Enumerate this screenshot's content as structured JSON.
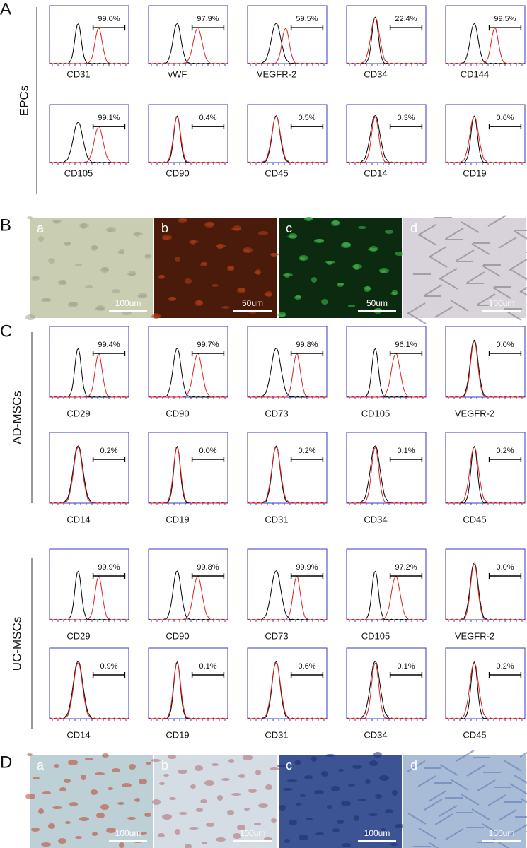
{
  "panels": [
    {
      "label": "A",
      "groups": [
        {
          "name": "EPCs",
          "plots": [
            {
              "marker": "CD31",
              "percent": "99.0%"
            },
            {
              "marker": "vWF",
              "percent": "97.9%"
            },
            {
              "marker": "VEGFR-2",
              "percent": "59.5%"
            },
            {
              "marker": "CD34",
              "percent": "22.4%"
            },
            {
              "marker": "CD144",
              "percent": "99.5%"
            },
            {
              "marker": "CD105",
              "percent": "99.1%"
            },
            {
              "marker": "CD90",
              "percent": "0.4%"
            },
            {
              "marker": "CD45",
              "percent": "0.5%"
            },
            {
              "marker": "CD14",
              "percent": "0.3%"
            },
            {
              "marker": "CD19",
              "percent": "0.6%"
            }
          ]
        }
      ]
    },
    {
      "label": "B",
      "images": [
        {
          "letter": "a",
          "scale": "100um"
        },
        {
          "letter": "b",
          "scale": "50um"
        },
        {
          "letter": "c",
          "scale": "50um"
        },
        {
          "letter": "d",
          "scale": "100um"
        }
      ]
    },
    {
      "label": "C",
      "groups": [
        {
          "name": "AD-MSCs",
          "plots": [
            {
              "marker": "CD29",
              "percent": "99.4%"
            },
            {
              "marker": "CD90",
              "percent": "99.7%"
            },
            {
              "marker": "CD73",
              "percent": "99.8%"
            },
            {
              "marker": "CD105",
              "percent": "96.1%"
            },
            {
              "marker": "VEGFR-2",
              "percent": "0.0%"
            },
            {
              "marker": "CD14",
              "percent": "0.2%"
            },
            {
              "marker": "CD19",
              "percent": "0.0%"
            },
            {
              "marker": "CD31",
              "percent": "0.2%"
            },
            {
              "marker": "CD34",
              "percent": "0.1%"
            },
            {
              "marker": "CD45",
              "percent": "0.2%"
            }
          ]
        },
        {
          "name": "UC-MSCs",
          "plots": [
            {
              "marker": "CD29",
              "percent": "99.9%"
            },
            {
              "marker": "CD90",
              "percent": "99.8%"
            },
            {
              "marker": "CD73",
              "percent": "99.9%"
            },
            {
              "marker": "CD105",
              "percent": "97.2%"
            },
            {
              "marker": "VEGFR-2",
              "percent": "0.0%"
            },
            {
              "marker": "CD14",
              "percent": "0.9%"
            },
            {
              "marker": "CD19",
              "percent": "0.1%"
            },
            {
              "marker": "CD31",
              "percent": "0.6%"
            },
            {
              "marker": "CD34",
              "percent": "0.1%"
            },
            {
              "marker": "CD45",
              "percent": "0.2%"
            }
          ]
        }
      ]
    },
    {
      "label": "D",
      "images": [
        {
          "letter": "a",
          "scale": "100um"
        },
        {
          "letter": "b",
          "scale": "100um"
        },
        {
          "letter": "c",
          "scale": "100um"
        },
        {
          "letter": "d",
          "scale": "100um"
        }
      ]
    }
  ]
}
